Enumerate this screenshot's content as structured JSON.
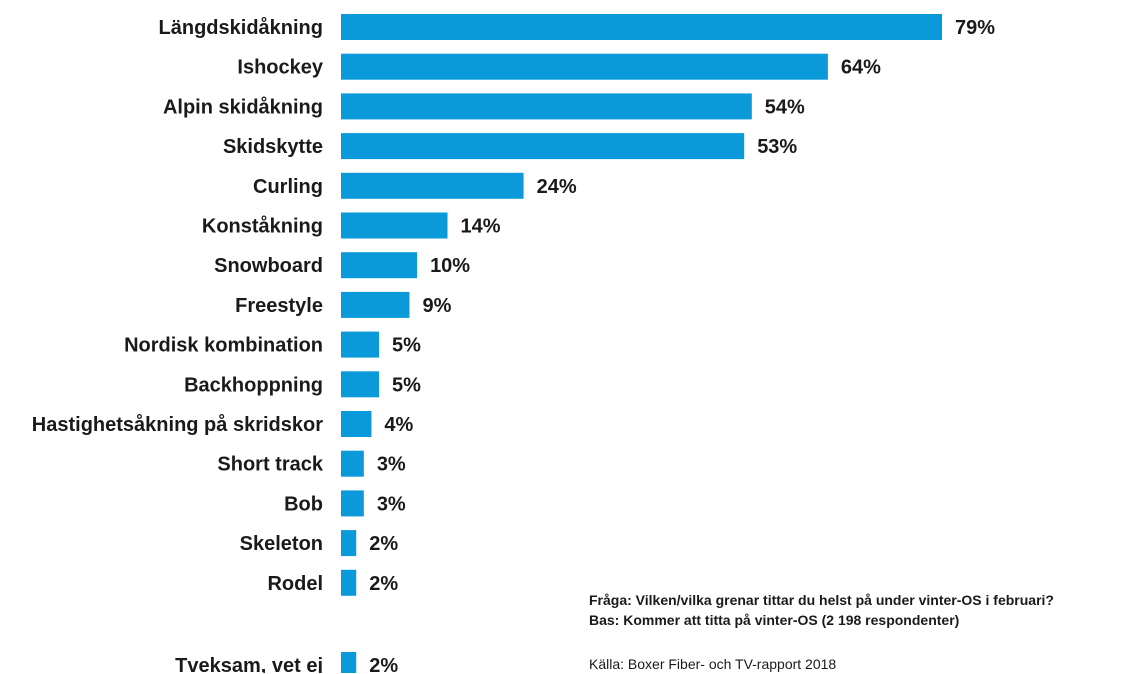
{
  "chart_data": {
    "type": "bar",
    "orientation": "horizontal",
    "categories": [
      "Längdskidåkning",
      "Ishockey",
      "Alpin skidåkning",
      "Skidskytte",
      "Curling",
      "Konståkning",
      "Snowboard",
      "Freestyle",
      "Nordisk kombination",
      "Backhoppning",
      "Hastighetsåkning på skridskor",
      "Short track",
      "Bob",
      "Skeleton",
      "Rodel",
      "Tveksam, vet ej"
    ],
    "values": [
      79,
      64,
      54,
      53,
      24,
      14,
      10,
      9,
      5,
      5,
      4,
      3,
      3,
      2,
      2,
      2
    ],
    "value_labels": [
      "79%",
      "64%",
      "54%",
      "53%",
      "24%",
      "14%",
      "10%",
      "9%",
      "5%",
      "5%",
      "4%",
      "3%",
      "3%",
      "2%",
      "2%",
      "2%"
    ],
    "unit": "%",
    "grid": false,
    "bar_color": "#0a9ad9"
  },
  "notes": {
    "question": "Fråga: Vilken/vilka grenar tittar du helst på under vinter-OS i februari?",
    "base": "Bas: Kommer att titta på vinter-OS (2 198 respondenter)",
    "source": "Källa: Boxer Fiber- och TV-rapport 2018"
  }
}
